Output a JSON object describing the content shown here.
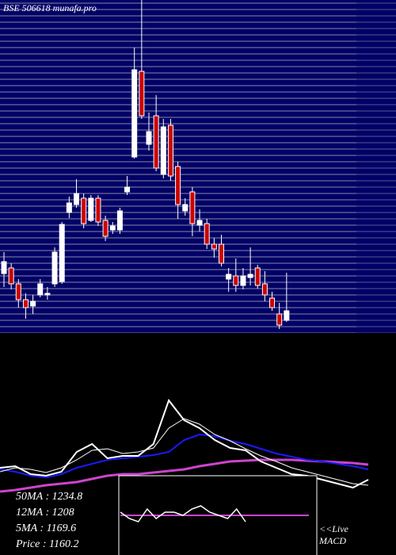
{
  "chart_data": {
    "type": "candlestick",
    "title": "BSE 506618 munafa.pro",
    "ylim": [
      1140,
      1560
    ],
    "ohlc": [
      [
        1215,
        1242,
        1198,
        1230
      ],
      [
        1222,
        1228,
        1195,
        1202
      ],
      [
        1202,
        1208,
        1172,
        1182
      ],
      [
        1182,
        1190,
        1158,
        1172
      ],
      [
        1174,
        1188,
        1164,
        1180
      ],
      [
        1188,
        1208,
        1185,
        1202
      ],
      [
        1188,
        1198,
        1182,
        1190
      ],
      [
        1202,
        1248,
        1198,
        1242
      ],
      [
        1205,
        1280,
        1202,
        1277
      ],
      [
        1292,
        1312,
        1285,
        1304
      ],
      [
        1302,
        1334,
        1298,
        1316
      ],
      [
        1310,
        1316,
        1272,
        1278
      ],
      [
        1282,
        1314,
        1280,
        1310
      ],
      [
        1310,
        1314,
        1275,
        1280
      ],
      [
        1282,
        1288,
        1256,
        1262
      ],
      [
        1270,
        1280,
        1265,
        1275
      ],
      [
        1270,
        1298,
        1265,
        1294
      ],
      [
        1318,
        1338,
        1314,
        1324
      ],
      [
        1362,
        1500,
        1360,
        1472
      ],
      [
        1470,
        1560,
        1410,
        1414
      ],
      [
        1378,
        1418,
        1370,
        1394
      ],
      [
        1414,
        1440,
        1344,
        1348
      ],
      [
        1340,
        1410,
        1335,
        1400
      ],
      [
        1402,
        1410,
        1332,
        1338
      ],
      [
        1350,
        1356,
        1284,
        1302
      ],
      [
        1294,
        1310,
        1288,
        1302
      ],
      [
        1318,
        1324,
        1262,
        1278
      ],
      [
        1276,
        1296,
        1268,
        1282
      ],
      [
        1278,
        1284,
        1246,
        1252
      ],
      [
        1252,
        1260,
        1235,
        1246
      ],
      [
        1252,
        1264,
        1224,
        1228
      ],
      [
        1208,
        1222,
        1192,
        1214
      ],
      [
        1212,
        1234,
        1192,
        1200
      ],
      [
        1200,
        1222,
        1195,
        1212
      ],
      [
        1210,
        1248,
        1200,
        1214
      ],
      [
        1222,
        1226,
        1196,
        1200
      ],
      [
        1202,
        1218,
        1180,
        1188
      ],
      [
        1184,
        1192,
        1168,
        1172
      ],
      [
        1164,
        1178,
        1145,
        1150
      ],
      [
        1156,
        1216,
        1154,
        1168
      ]
    ],
    "ma_panel": {
      "type": "line",
      "ylim": [
        1150,
        1500
      ],
      "series": [
        {
          "color": "#cc44cc",
          "width": 3,
          "values": [
            1150,
            1155,
            1162.5,
            1170,
            1175,
            1180,
            1190,
            1200,
            1205,
            1205,
            1210,
            1215,
            1220,
            1230,
            1237.5,
            1245,
            1247.5,
            1250,
            1250,
            1250,
            1247.5,
            1245,
            1242.5,
            1240,
            1235
          ]
        },
        {
          "color": "#1a1aff",
          "width": 2,
          "values": [
            1220,
            1212.5,
            1200,
            1195,
            1205,
            1225,
            1237.5,
            1250,
            1255,
            1260,
            1265,
            1275,
            1312.5,
            1330,
            1325,
            1310,
            1300,
            1285,
            1270,
            1260,
            1250,
            1245,
            1237.5,
            1230,
            1220
          ]
        },
        {
          "color": "#ffffff",
          "width": 1,
          "values": [
            1212.5,
            1225,
            1220,
            1210,
            1225,
            1250,
            1280,
            1285,
            1270,
            1275,
            1287.5,
            1350,
            1380,
            1362.5,
            1330,
            1310,
            1285,
            1262.5,
            1245,
            1225,
            1212.5,
            1200,
            1187.5,
            1175,
            1170
          ]
        },
        {
          "color": "#ffffff",
          "width": 2,
          "values": [
            1225,
            1230,
            1205,
            1200,
            1212.5,
            1275,
            1300,
            1255,
            1262.5,
            1262.5,
            1300,
            1437.5,
            1375,
            1350,
            1312.5,
            1287.5,
            1280,
            1245,
            1225,
            1205,
            1200,
            1187.5,
            1175,
            1162.5,
            1187.5
          ]
        }
      ],
      "labels": [
        "50MA : 1234.8",
        "12MA : 1208",
        "5MA : 1169.6",
        "Price   : 1160.2"
      ]
    },
    "macd_panel": {
      "type": "line",
      "ylim": [
        -1,
        1
      ],
      "macd": {
        "color": "#ffffff",
        "values": [
          0.1,
          -0.1,
          -0.2,
          0.2,
          -0.1,
          0.1,
          0.1,
          0.0,
          0.2,
          0.3,
          0.1,
          0.0,
          -0.1,
          0.2,
          -0.2
        ]
      },
      "signal": {
        "color": "#cc44cc",
        "values": [
          0,
          0
        ]
      },
      "labels": [
        "<<Live",
        "MACD"
      ]
    }
  }
}
